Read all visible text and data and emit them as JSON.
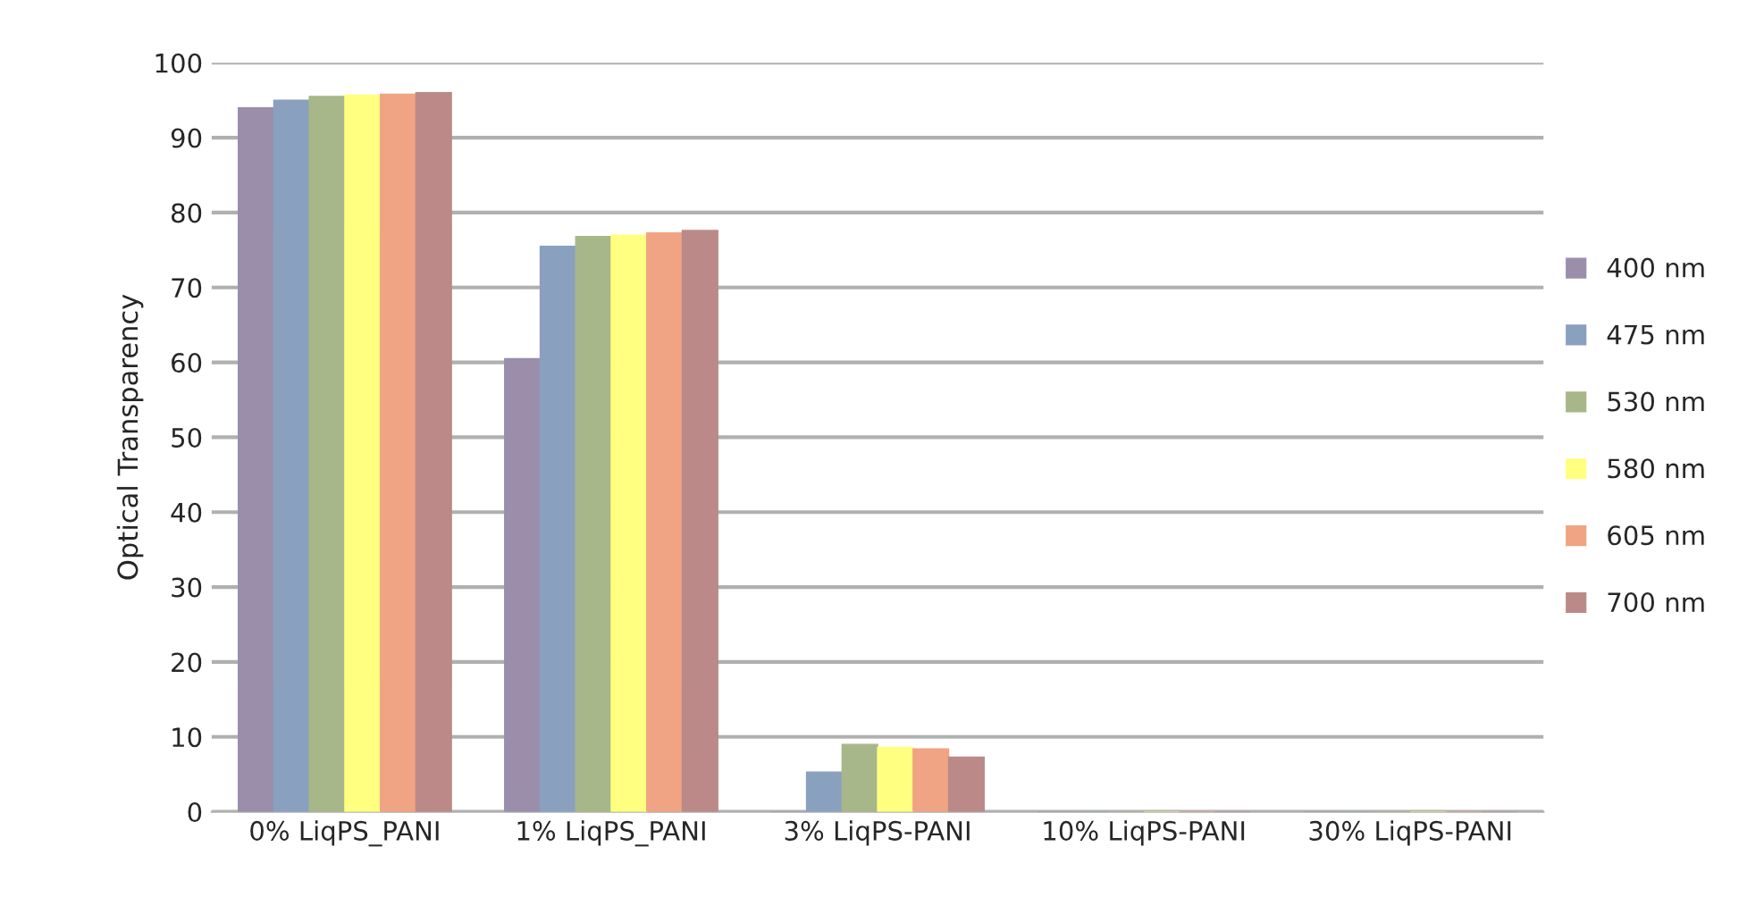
{
  "chart_data": {
    "type": "bar",
    "ylabel": "Optical Transparency",
    "categories": [
      "0% LiqPS_PANI",
      "1% LiqPS_PANI",
      "3% LiqPS-PANI",
      "10% LiqPS-PANI",
      "30% LiqPS-PANI"
    ],
    "series": [
      {
        "name": "400 nm",
        "color": "#9a8eab",
        "values": [
          94,
          60.5,
          0,
          0,
          0
        ]
      },
      {
        "name": "475 nm",
        "color": "#8aa0bf",
        "values": [
          95,
          75.5,
          5.3,
          0,
          0
        ]
      },
      {
        "name": "530 nm",
        "color": "#a7b78a",
        "values": [
          95.5,
          76.8,
          9,
          0,
          0
        ]
      },
      {
        "name": "580 nm",
        "color": "#ffff80",
        "values": [
          95.7,
          77,
          8.6,
          0,
          0
        ]
      },
      {
        "name": "605 nm",
        "color": "#f0a483",
        "values": [
          95.8,
          77.3,
          8.4,
          0,
          0
        ]
      },
      {
        "name": "700 nm",
        "color": "#bb8a88",
        "values": [
          96,
          77.6,
          7.3,
          0,
          0
        ]
      }
    ],
    "ylim": [
      0,
      100
    ],
    "yticks": [
      0,
      10,
      20,
      30,
      40,
      50,
      60,
      70,
      80,
      90,
      100
    ],
    "grid": "y",
    "legend": "right"
  }
}
